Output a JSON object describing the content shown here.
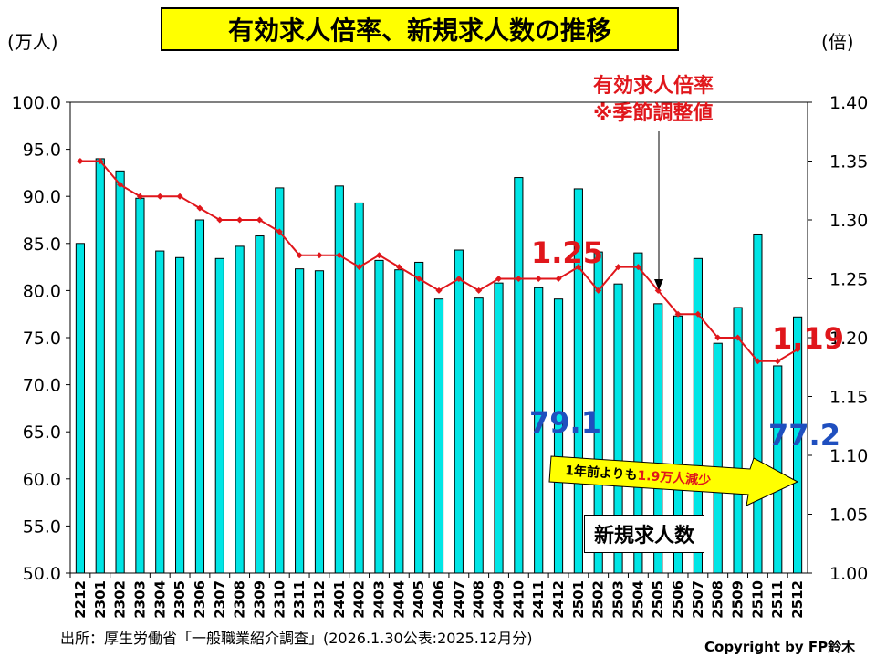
{
  "header": {
    "title": "有効求人倍率、新規求人数の推移",
    "left_unit": "(万人)",
    "right_unit": "(倍)"
  },
  "annotations": {
    "ratio_series_label_line1": "有効求人倍率",
    "ratio_series_label_line2": "※季節調整値",
    "ratio_first": "1.25",
    "ratio_last": "1.19",
    "jobs_first": "79.1",
    "jobs_last": "77.2",
    "arrow_text_pre": "1年前よりも",
    "arrow_text_highlight": "1.9万人減少",
    "jobs_series_label": "新規求人数"
  },
  "footer": {
    "source": "出所：厚生労働省「一般職業紹介調査」(2026.1.30公表:2025.12月分)",
    "copyright": "Copyright by FP鈴木"
  },
  "colors": {
    "bar_fill": "#00e5e5",
    "line": "#e0161b",
    "accent_blue": "#1f4fbf",
    "arrow_fill": "#ffff00"
  },
  "chart_data": {
    "type": "bar+line",
    "categories": [
      "2212",
      "2301",
      "2302",
      "2303",
      "2304",
      "2305",
      "2306",
      "2307",
      "2308",
      "2309",
      "2310",
      "2311",
      "2312",
      "2401",
      "2402",
      "2403",
      "2404",
      "2405",
      "2406",
      "2407",
      "2408",
      "2409",
      "2410",
      "2411",
      "2412",
      "2501",
      "2502",
      "2503",
      "2504",
      "2505",
      "2506",
      "2507",
      "2508",
      "2509",
      "2510",
      "2511",
      "2512"
    ],
    "series": [
      {
        "name": "新規求人数",
        "axis": "left",
        "type": "bar",
        "values": [
          85.0,
          94.0,
          92.7,
          89.8,
          84.2,
          83.5,
          87.5,
          83.4,
          84.7,
          85.8,
          90.9,
          82.3,
          82.1,
          91.1,
          89.3,
          83.2,
          82.2,
          83.0,
          79.1,
          84.3,
          79.2,
          80.8,
          92.0,
          80.3,
          79.1,
          90.8,
          84.1,
          80.7,
          84.0,
          78.6,
          77.3,
          83.4,
          74.4,
          78.2,
          86.0,
          72.0,
          77.2
        ]
      },
      {
        "name": "有効求人倍率",
        "axis": "right",
        "type": "line",
        "values": [
          1.35,
          1.35,
          1.33,
          1.32,
          1.32,
          1.32,
          1.31,
          1.3,
          1.3,
          1.3,
          1.29,
          1.27,
          1.27,
          1.27,
          1.26,
          1.27,
          1.26,
          1.25,
          1.24,
          1.25,
          1.24,
          1.25,
          1.25,
          1.25,
          1.25,
          1.26,
          1.24,
          1.26,
          1.26,
          1.24,
          1.22,
          1.22,
          1.2,
          1.2,
          1.18,
          1.18,
          1.19
        ]
      }
    ],
    "y_left": {
      "min": 50,
      "max": 100,
      "step": 5,
      "decimals": 1
    },
    "y_right": {
      "min": 1.0,
      "max": 1.4,
      "step": 0.05,
      "decimals": 2
    },
    "grid": false,
    "legend": "none"
  }
}
